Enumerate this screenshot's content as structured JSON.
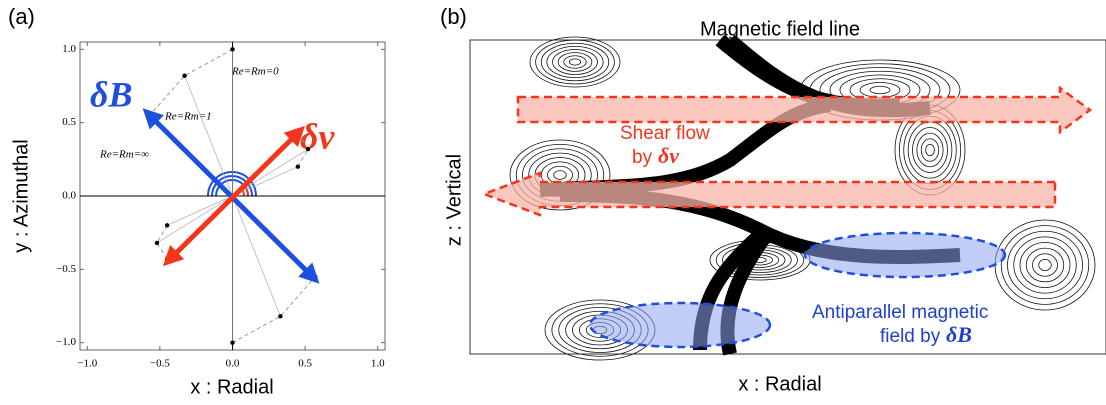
{
  "panel_a": {
    "label": "(a)",
    "xlabel": "x : Radial",
    "ylabel": "y : Azimuthal",
    "xlim": [
      -1.05,
      1.05
    ],
    "ylim": [
      -1.05,
      1.05
    ],
    "xticks": [
      {
        "value": -1,
        "label": "−1.0"
      },
      {
        "value": -0.5,
        "label": "−0.5"
      },
      {
        "value": 0,
        "label": "0.0"
      },
      {
        "value": 0.5,
        "label": "0.5"
      },
      {
        "value": 1,
        "label": "1.0"
      }
    ],
    "yticks": [
      {
        "value": -1,
        "label": "−1.0"
      },
      {
        "value": -0.5,
        "label": "−0.5"
      },
      {
        "value": 0,
        "label": "0.0"
      },
      {
        "value": 0.5,
        "label": "0.5"
      },
      {
        "value": 1,
        "label": "1.0"
      }
    ],
    "arrows": [
      {
        "name": "δB",
        "color": "#1f4fe0",
        "x": [
          0.55,
          -0.57
        ],
        "y": [
          -0.55,
          0.55
        ]
      },
      {
        "name": "δv",
        "color": "#f5341c",
        "x": [
          -0.43,
          0.45
        ],
        "y": [
          -0.43,
          0.43
        ]
      }
    ],
    "curves": [
      {
        "x": [
          0,
          -0.33,
          -0.57
        ],
        "y": [
          1,
          0.82,
          0.55
        ]
      },
      {
        "x": [
          0,
          0.33,
          0.57
        ],
        "y": [
          -1,
          -0.82,
          -0.55
        ]
      },
      {
        "x": [
          -0.45,
          -0.52,
          -0.45
        ],
        "y": [
          -0.2,
          -0.32,
          -0.43
        ]
      },
      {
        "x": [
          0.45,
          0.52,
          0.45
        ],
        "y": [
          0.2,
          0.32,
          0.43
        ]
      }
    ],
    "annotations": [
      "Re=Rm=0",
      "Re=Rm=1",
      "Re=Rm=∞"
    ]
  },
  "panel_b": {
    "label": "(b)",
    "title": "Magnetic field line",
    "xlabel": "x : Radial",
    "ylabel": "z : Vertical",
    "shear_flow": [
      "Shear flow",
      "by",
      "δv"
    ],
    "antiparallel": [
      "Antiparallel magnetic",
      "field by",
      "δB"
    ]
  }
}
